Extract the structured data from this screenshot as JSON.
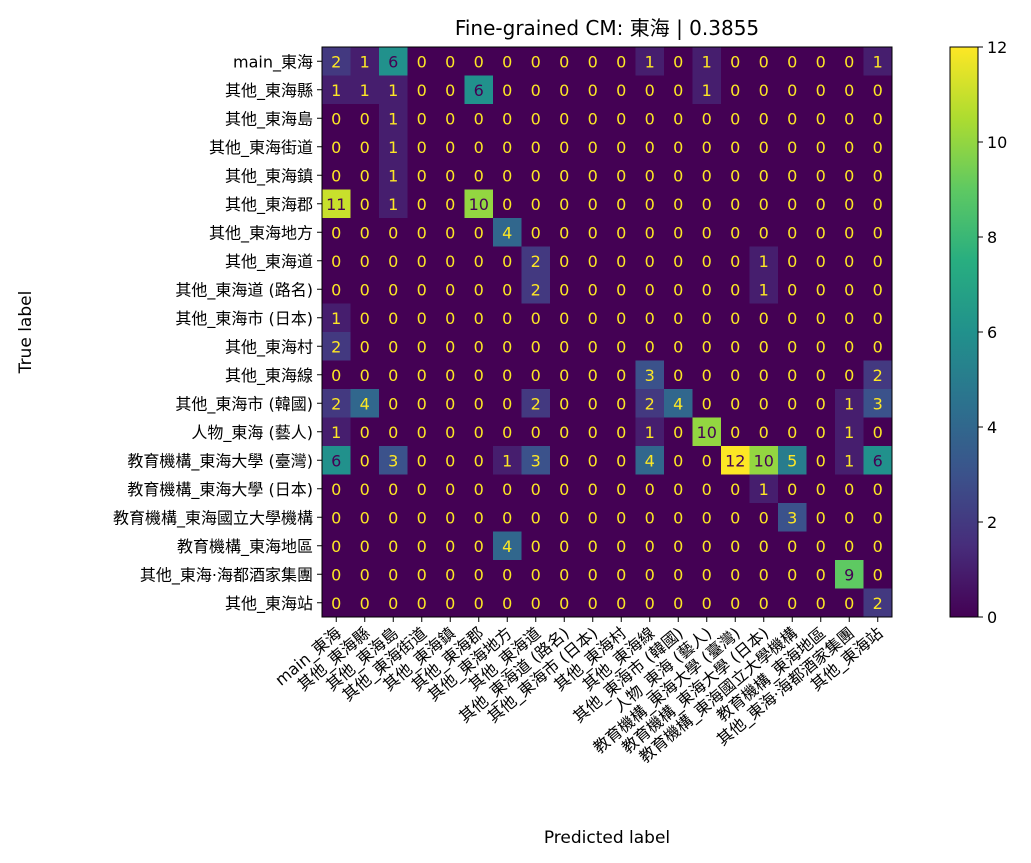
{
  "chart_data": {
    "type": "heatmap",
    "title": "Fine-grained CM: 東海 | 0.3855",
    "xlabel": "Predicted label",
    "ylabel": "True label",
    "labels": [
      "main_東海",
      "其他_東海縣",
      "其他_東海島",
      "其他_東海街道",
      "其他_東海鎮",
      "其他_東海郡",
      "其他_東海地方",
      "其他_東海道",
      "其他_東海道 (路名)",
      "其他_東海市 (日本)",
      "其他_東海村",
      "其他_東海線",
      "其他_東海市 (韓國)",
      "人物_東海 (藝人)",
      "教育機構_東海大學 (臺灣)",
      "教育機構_東海大學 (日本)",
      "教育機構_東海國立大學機構",
      "教育機構_東海地區",
      "其他_東海·海都酒家集團",
      "其他_東海站"
    ],
    "matrix": [
      [
        2,
        1,
        6,
        0,
        0,
        0,
        0,
        0,
        0,
        0,
        0,
        1,
        0,
        1,
        0,
        0,
        0,
        0,
        0,
        1
      ],
      [
        1,
        1,
        1,
        0,
        0,
        6,
        0,
        0,
        0,
        0,
        0,
        0,
        0,
        1,
        0,
        0,
        0,
        0,
        0,
        0
      ],
      [
        0,
        0,
        1,
        0,
        0,
        0,
        0,
        0,
        0,
        0,
        0,
        0,
        0,
        0,
        0,
        0,
        0,
        0,
        0,
        0
      ],
      [
        0,
        0,
        1,
        0,
        0,
        0,
        0,
        0,
        0,
        0,
        0,
        0,
        0,
        0,
        0,
        0,
        0,
        0,
        0,
        0
      ],
      [
        0,
        0,
        1,
        0,
        0,
        0,
        0,
        0,
        0,
        0,
        0,
        0,
        0,
        0,
        0,
        0,
        0,
        0,
        0,
        0
      ],
      [
        11,
        0,
        1,
        0,
        0,
        10,
        0,
        0,
        0,
        0,
        0,
        0,
        0,
        0,
        0,
        0,
        0,
        0,
        0,
        0
      ],
      [
        0,
        0,
        0,
        0,
        0,
        0,
        4,
        0,
        0,
        0,
        0,
        0,
        0,
        0,
        0,
        0,
        0,
        0,
        0,
        0
      ],
      [
        0,
        0,
        0,
        0,
        0,
        0,
        0,
        2,
        0,
        0,
        0,
        0,
        0,
        0,
        0,
        1,
        0,
        0,
        0,
        0
      ],
      [
        0,
        0,
        0,
        0,
        0,
        0,
        0,
        2,
        0,
        0,
        0,
        0,
        0,
        0,
        0,
        1,
        0,
        0,
        0,
        0
      ],
      [
        1,
        0,
        0,
        0,
        0,
        0,
        0,
        0,
        0,
        0,
        0,
        0,
        0,
        0,
        0,
        0,
        0,
        0,
        0,
        0
      ],
      [
        2,
        0,
        0,
        0,
        0,
        0,
        0,
        0,
        0,
        0,
        0,
        0,
        0,
        0,
        0,
        0,
        0,
        0,
        0,
        0
      ],
      [
        0,
        0,
        0,
        0,
        0,
        0,
        0,
        0,
        0,
        0,
        0,
        3,
        0,
        0,
        0,
        0,
        0,
        0,
        0,
        2
      ],
      [
        2,
        4,
        0,
        0,
        0,
        0,
        0,
        2,
        0,
        0,
        0,
        2,
        4,
        0,
        0,
        0,
        0,
        0,
        1,
        3
      ],
      [
        1,
        0,
        0,
        0,
        0,
        0,
        0,
        0,
        0,
        0,
        0,
        1,
        0,
        10,
        0,
        0,
        0,
        0,
        1,
        0
      ],
      [
        6,
        0,
        3,
        0,
        0,
        0,
        1,
        3,
        0,
        0,
        0,
        4,
        0,
        0,
        12,
        10,
        5,
        0,
        1,
        6
      ],
      [
        0,
        0,
        0,
        0,
        0,
        0,
        0,
        0,
        0,
        0,
        0,
        0,
        0,
        0,
        0,
        1,
        0,
        0,
        0,
        0
      ],
      [
        0,
        0,
        0,
        0,
        0,
        0,
        0,
        0,
        0,
        0,
        0,
        0,
        0,
        0,
        0,
        0,
        3,
        0,
        0,
        0
      ],
      [
        0,
        0,
        0,
        0,
        0,
        0,
        4,
        0,
        0,
        0,
        0,
        0,
        0,
        0,
        0,
        0,
        0,
        0,
        0,
        0
      ],
      [
        0,
        0,
        0,
        0,
        0,
        0,
        0,
        0,
        0,
        0,
        0,
        0,
        0,
        0,
        0,
        0,
        0,
        0,
        9,
        0
      ],
      [
        0,
        0,
        0,
        0,
        0,
        0,
        0,
        0,
        0,
        0,
        0,
        0,
        0,
        0,
        0,
        0,
        0,
        0,
        0,
        2
      ]
    ],
    "colorbar": {
      "colormap": "viridis",
      "range": [
        0,
        12
      ],
      "ticks": [
        "0",
        "2",
        "4",
        "6",
        "8",
        "10",
        "12"
      ]
    },
    "colors": {
      "low": "#440154",
      "high": "#fde725",
      "text_on_dark": "#fde725",
      "text_on_light": "#440154"
    }
  }
}
